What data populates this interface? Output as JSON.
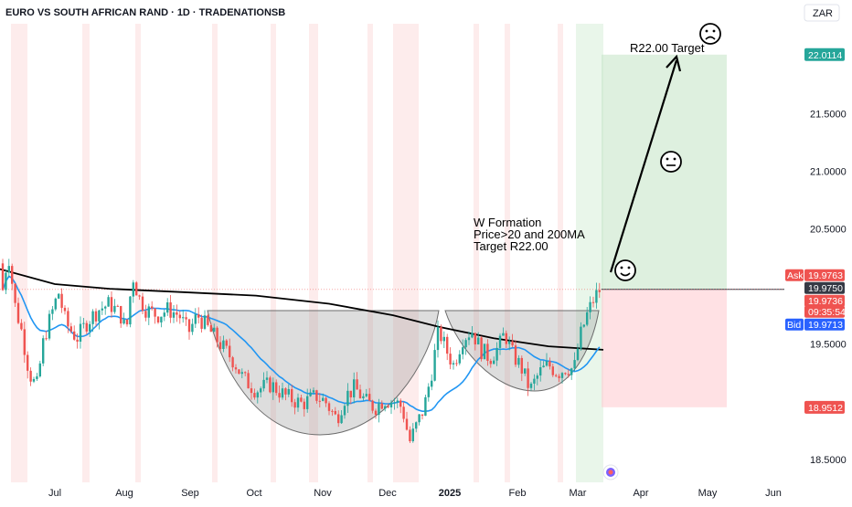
{
  "title": "EURO VS SOUTH AFRICAN RAND · 1D · TRADENATIONSB",
  "currency": "ZAR",
  "colors": {
    "up": "#26a69a",
    "down": "#ef5350",
    "ma20": "#2196f3",
    "ma200": "#000000",
    "target_zone": "#c8e6c9",
    "stop_zone": "#ffcdd2",
    "cup": "#9e9e9e",
    "ask_tag": "#ef5350",
    "bid_tag": "#2962ff",
    "last_tag": "#363a45",
    "target_tag": "#26a69a"
  },
  "chart_data": {
    "type": "candlestick",
    "y_range": [
      18.3,
      22.2
    ],
    "y_ticks": [
      {
        "value": 18.5,
        "label": "18.5000"
      },
      {
        "value": 19.5,
        "label": "19.5000"
      },
      {
        "value": 20.5,
        "label": "20.5000"
      },
      {
        "value": 21.0,
        "label": "21.0000"
      },
      {
        "value": 21.5,
        "label": "21.5000"
      }
    ],
    "x_ticks": [
      "Jul",
      "Aug",
      "Sep",
      "Oct",
      "Nov",
      "Dec",
      "2025",
      "Feb",
      "Mar",
      "Apr",
      "May",
      "Jun"
    ],
    "series": [
      {
        "name": "",
        "kind": "price",
        "color": "candles"
      },
      {
        "name": "",
        "kind": "moving_average_20",
        "color": "#2196f3"
      },
      {
        "name": "",
        "kind": "moving_average_200",
        "color": "#000000"
      }
    ],
    "price_markers": {
      "target": {
        "value": 22.0114,
        "label": "22.0114"
      },
      "ask": {
        "value": 19.9763,
        "label": "19.9763",
        "name": "Ask"
      },
      "last": {
        "value": 19.975,
        "label": "19.9750"
      },
      "current": {
        "value": 19.9736,
        "label": "19.9736",
        "countdown": "09:35:54"
      },
      "bid": {
        "value": 19.9713,
        "label": "19.9713",
        "name": "Bid"
      },
      "stop": {
        "value": 18.9512,
        "label": "18.9512"
      }
    },
    "annotations": {
      "pattern_lines": [
        "W Formation",
        "Price>20 and 200MA",
        "Target R22.00"
      ],
      "target_label": "R22.00 Target",
      "faces": [
        "smile",
        "neutral",
        "frown"
      ]
    }
  }
}
